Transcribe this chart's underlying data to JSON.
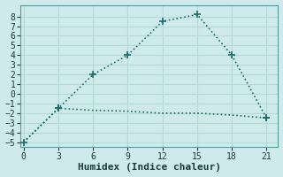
{
  "xlabel": "Humidex (Indice chaleur)",
  "background_color": "#ceeaea",
  "grid_color": "#b8d8d8",
  "line_color": "#1e6b6b",
  "x_ticks": [
    0,
    3,
    6,
    9,
    12,
    15,
    18,
    21
  ],
  "ylim": [
    -5.5,
    9.2
  ],
  "xlim": [
    -0.3,
    22.0
  ],
  "yticks": [
    -5,
    -4,
    -3,
    -2,
    -1,
    0,
    1,
    2,
    3,
    4,
    5,
    6,
    7,
    8
  ],
  "line1_x": [
    0,
    3,
    6,
    9,
    12,
    15,
    18,
    21
  ],
  "line1_y": [
    -5,
    -1.5,
    2.0,
    4.0,
    7.5,
    8.2,
    4.0,
    -2.5
  ],
  "line2_x": [
    0,
    3,
    6,
    9,
    12,
    15,
    18,
    21
  ],
  "line2_y": [
    -5,
    -1.5,
    -1.7,
    -1.8,
    -2.0,
    -2.0,
    -2.2,
    -2.5
  ],
  "marker": "P",
  "marker_size": 4,
  "line_width": 1.2,
  "font_size_label": 8,
  "font_size_tick": 7
}
